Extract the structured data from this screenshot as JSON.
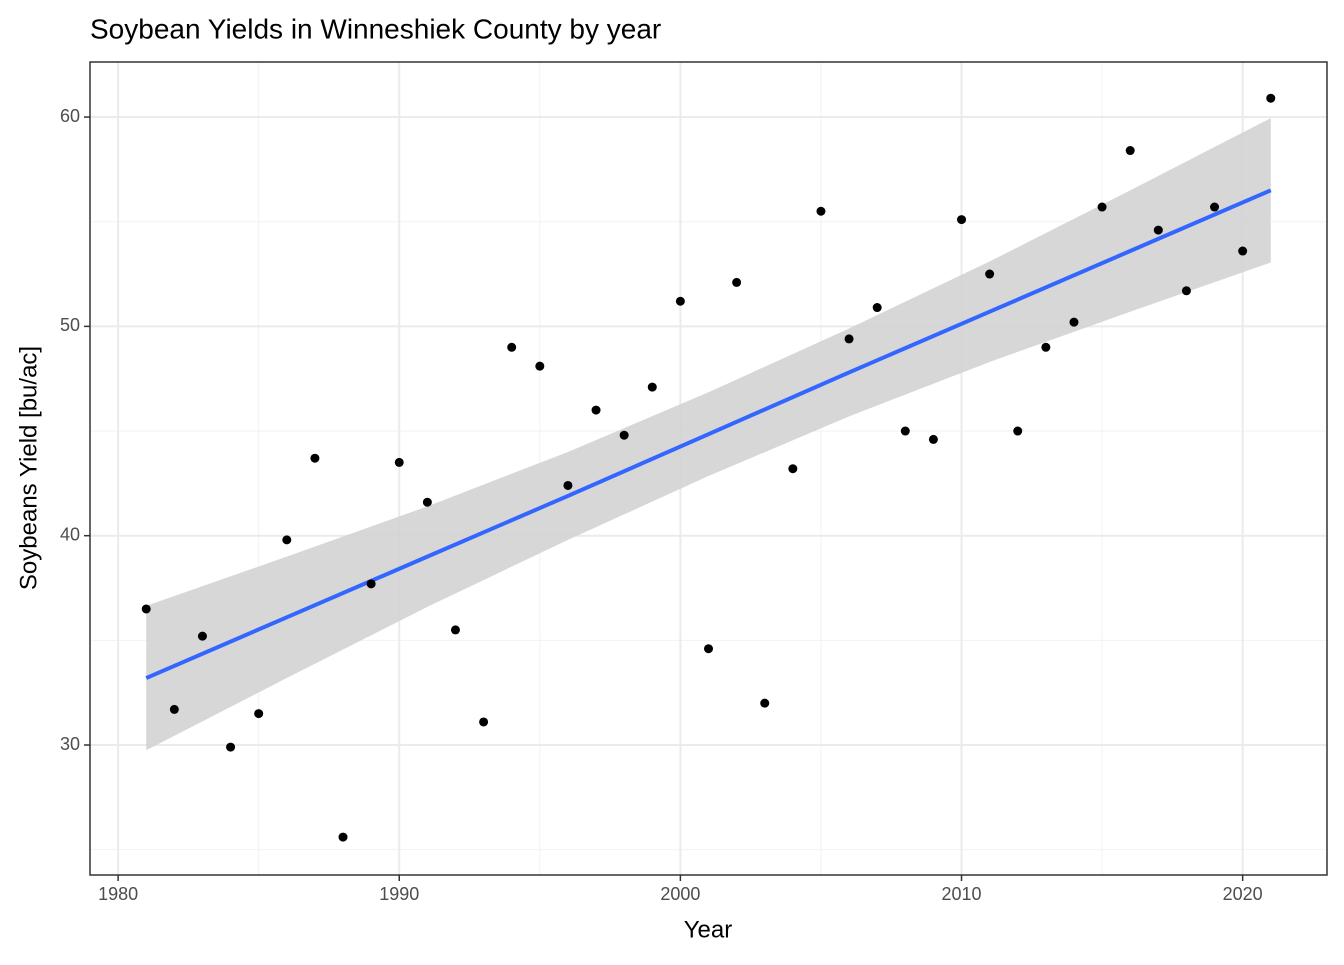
{
  "chart_data": {
    "type": "scatter",
    "title": "Soybean Yields in Winneshiek County by year",
    "x_label": "Year",
    "y_label": "Soybeans Yield [bu/ac]",
    "x": [
      1981,
      1982,
      1983,
      1984,
      1985,
      1986,
      1987,
      1988,
      1989,
      1990,
      1991,
      1992,
      1993,
      1994,
      1995,
      1996,
      1997,
      1998,
      1999,
      2000,
      2001,
      2002,
      2003,
      2004,
      2005,
      2006,
      2007,
      2008,
      2009,
      2010,
      2011,
      2012,
      2013,
      2014,
      2015,
      2016,
      2017,
      2018,
      2019,
      2020,
      2021
    ],
    "values": [
      36.5,
      31.7,
      35.2,
      29.9,
      31.5,
      39.8,
      43.7,
      25.6,
      37.7,
      43.5,
      41.6,
      35.5,
      31.1,
      49.0,
      48.1,
      42.4,
      46.0,
      44.8,
      47.1,
      51.2,
      34.6,
      52.1,
      32.0,
      43.2,
      55.5,
      49.4,
      50.9,
      45.0,
      44.6,
      55.1,
      52.5,
      45.0,
      49.0,
      50.2,
      55.7,
      58.4,
      54.6,
      51.7,
      55.7,
      53.6,
      60.9
    ],
    "color": "#000000",
    "smooth": {
      "x": [
        1981,
        1986,
        1991,
        1996,
        2001,
        2006,
        2011,
        2016,
        2021
      ],
      "values": [
        33.2,
        36.1,
        39.0,
        41.9,
        44.85,
        47.8,
        50.7,
        53.6,
        56.5
      ],
      "lower": [
        29.75,
        33.2,
        36.6,
        39.8,
        42.85,
        45.7,
        48.3,
        50.7,
        53.05
      ],
      "upper": [
        36.65,
        39.0,
        41.4,
        44.0,
        46.85,
        49.9,
        53.1,
        56.5,
        59.95
      ],
      "color": "#3366ff",
      "band_color": "#d3d3d3"
    },
    "xlim": [
      1979.0,
      2023.0
    ],
    "ylim": [
      23.79,
      62.63
    ],
    "xticks": [
      1980,
      1990,
      2000,
      2010,
      2020
    ],
    "yticks": [
      30,
      40,
      50,
      60
    ],
    "xminor": [
      1985,
      1995,
      2005,
      2015
    ],
    "yminor": [
      25,
      35,
      45,
      55
    ],
    "grid": true
  }
}
